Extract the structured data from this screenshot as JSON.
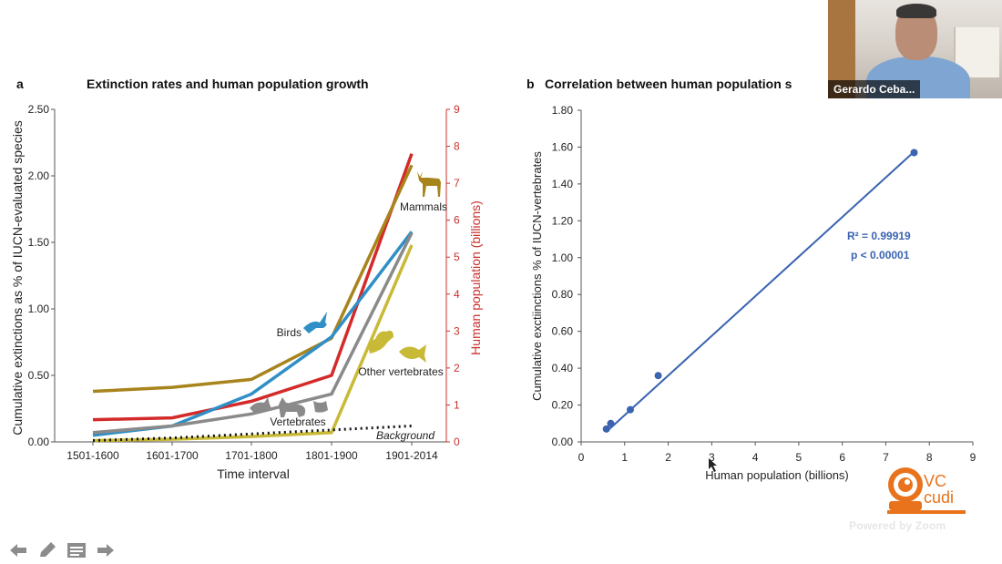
{
  "slide": {
    "panel_a": {
      "letter": "a",
      "title": "Extinction rates and human population growth",
      "animals": {
        "mammals": "deer-icon",
        "birds": "bird-icon",
        "other": "frog-fish-icon",
        "vertebrates": "fox-bird-icon"
      }
    },
    "panel_b": {
      "letter": "b",
      "title": "Correlation between human population s",
      "r2": "R² = 0.99919",
      "p": "p < 0.00001"
    }
  },
  "chart_data": [
    {
      "type": "line",
      "title": "Extinction rates and human population growth",
      "xlabel": "Time interval",
      "ylabel": "Cumulative extinctions as % of IUCN-evaluated species",
      "y2label": "Human population (billions)",
      "categories": [
        "1501-1600",
        "1601-1700",
        "1701-1800",
        "1801-1900",
        "1901-2014"
      ],
      "ylim": [
        0,
        2.5
      ],
      "yticks": [
        "0.00",
        "0.50",
        "1.00",
        "1.50",
        "2.00",
        "2.50"
      ],
      "y2lim": [
        0,
        9
      ],
      "y2ticks": [
        "0",
        "1",
        "2",
        "3",
        "4",
        "5",
        "6",
        "7",
        "8",
        "9"
      ],
      "series": [
        {
          "name": "Mammals",
          "color": "#a8841c",
          "values": [
            0.38,
            0.41,
            0.47,
            0.78,
            2.08
          ]
        },
        {
          "name": "Birds",
          "color": "#2f8fc6",
          "values": [
            0.05,
            0.12,
            0.36,
            0.79,
            1.58
          ]
        },
        {
          "name": "Vertebrates",
          "color": "#8a8a8a",
          "values": [
            0.07,
            0.12,
            0.21,
            0.36,
            1.57
          ]
        },
        {
          "name": "Other vertebrates",
          "color": "#c8ba36",
          "values": [
            0.01,
            0.02,
            0.04,
            0.07,
            1.48
          ]
        },
        {
          "name": "Background",
          "color": "#111111",
          "dashed": true,
          "values": [
            0.01,
            0.03,
            0.06,
            0.09,
            0.12
          ]
        }
      ],
      "population_series": {
        "color": "#d32a2a",
        "values": [
          0.6,
          0.65,
          1.1,
          1.8,
          7.8
        ]
      }
    },
    {
      "type": "scatter",
      "title": "Correlation between human population s",
      "xlabel": "Human population (billions)",
      "ylabel": "Cumulative exctiinctions % of IUCN-vertebrates",
      "xlim": [
        0,
        9
      ],
      "xticks": [
        "0",
        "1",
        "2",
        "3",
        "4",
        "5",
        "6",
        "7",
        "8",
        "9"
      ],
      "ylim": [
        0,
        1.8
      ],
      "yticks": [
        "0.00",
        "0.20",
        "0.40",
        "0.60",
        "0.80",
        "1.00",
        "1.20",
        "1.40",
        "1.60",
        "1.80"
      ],
      "color": "#3a63b0",
      "points": [
        {
          "x": 0.58,
          "y": 0.07
        },
        {
          "x": 0.68,
          "y": 0.1
        },
        {
          "x": 1.13,
          "y": 0.175
        },
        {
          "x": 1.77,
          "y": 0.36
        },
        {
          "x": 7.65,
          "y": 1.57
        }
      ],
      "trendline": {
        "x": [
          0.58,
          7.65
        ],
        "y": [
          0.055,
          1.575
        ]
      },
      "annotations": [
        "R² = 0.99919",
        "p < 0.00001"
      ]
    }
  ],
  "video": {
    "participant_name": "Gerardo Ceba..."
  },
  "branding": {
    "logo_text_1": "VC",
    "logo_text_2": "cudi",
    "powered": "Powered by Zoom"
  },
  "nav": {
    "icons": [
      "arrow-left-icon",
      "pencil-icon",
      "menu-icon",
      "arrow-right-icon"
    ]
  }
}
